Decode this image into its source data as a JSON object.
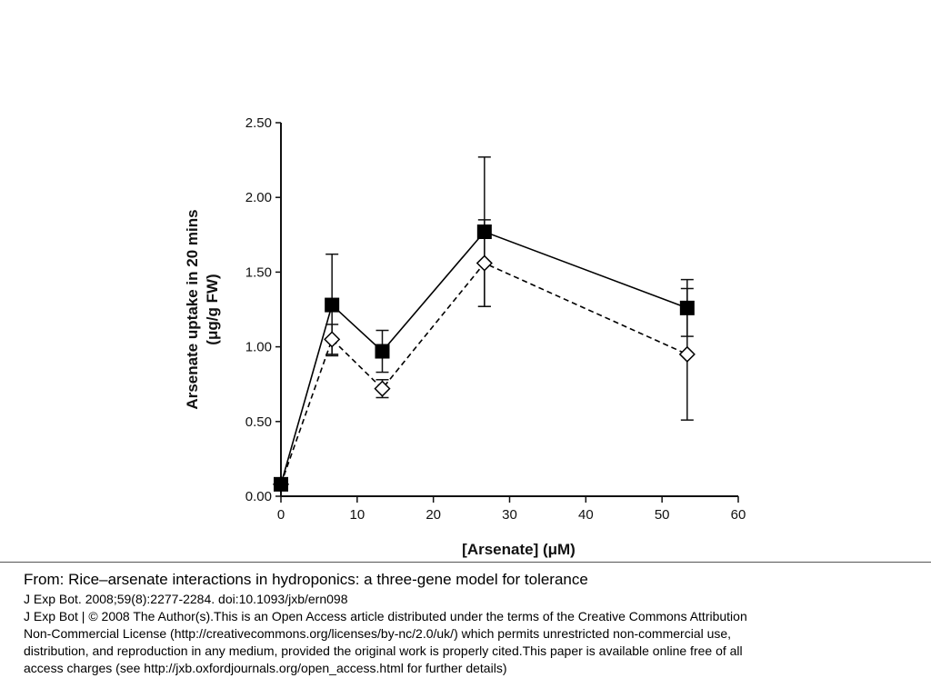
{
  "chart_data": {
    "type": "line",
    "xlabel": "[Arsenate] (μM)",
    "ylabel_lines": [
      "Arsenate uptake in 20 mins",
      "(μg/g FW)"
    ],
    "xlim": [
      0,
      60
    ],
    "ylim": [
      0.0,
      2.5
    ],
    "x_ticks": [
      "0",
      "10",
      "20",
      "30",
      "40",
      "50",
      "60"
    ],
    "y_ticks": [
      "0.00",
      "0.50",
      "1.00",
      "1.50",
      "2.00",
      "2.50"
    ],
    "x_tick_values": [
      0,
      10,
      20,
      30,
      40,
      50,
      60
    ],
    "y_tick_values": [
      0,
      0.5,
      1.0,
      1.5,
      2.0,
      2.5
    ],
    "grid": false,
    "legend": "none",
    "series": [
      {
        "marker": "filled-square",
        "line": "solid",
        "color": "#000000",
        "x": [
          0,
          6.7,
          13.3,
          26.7,
          53.3
        ],
        "y": [
          0.08,
          1.28,
          0.97,
          1.77,
          1.26
        ],
        "err": [
          0.0,
          0.34,
          0.14,
          0.5,
          0.19
        ]
      },
      {
        "marker": "open-diamond",
        "line": "dashed",
        "color": "#000000",
        "x": [
          0,
          6.7,
          13.3,
          26.7,
          53.3
        ],
        "y": [
          0.08,
          1.05,
          0.72,
          1.56,
          0.95
        ],
        "err": [
          0.0,
          0.1,
          0.06,
          0.29,
          0.44
        ]
      }
    ]
  },
  "caption": {
    "title": "From: Rice–arsenate interactions in hydroponics: a three-gene model for tolerance",
    "lines": [
      "J Exp Bot. 2008;59(8):2277-2284. doi:10.1093/jxb/ern098",
      "J Exp Bot | © 2008 The Author(s).This is an Open Access article distributed under the terms of the Creative Commons Attribution",
      "Non-Commercial License (http://creativecommons.org/licenses/by-nc/2.0/uk/) which permits unrestricted non-commercial use,",
      "distribution, and reproduction in any medium, provided the original work is properly cited.This paper is available online free of all",
      "access charges (see http://jxb.oxfordjournals.org/open_access.html for further details)"
    ]
  }
}
